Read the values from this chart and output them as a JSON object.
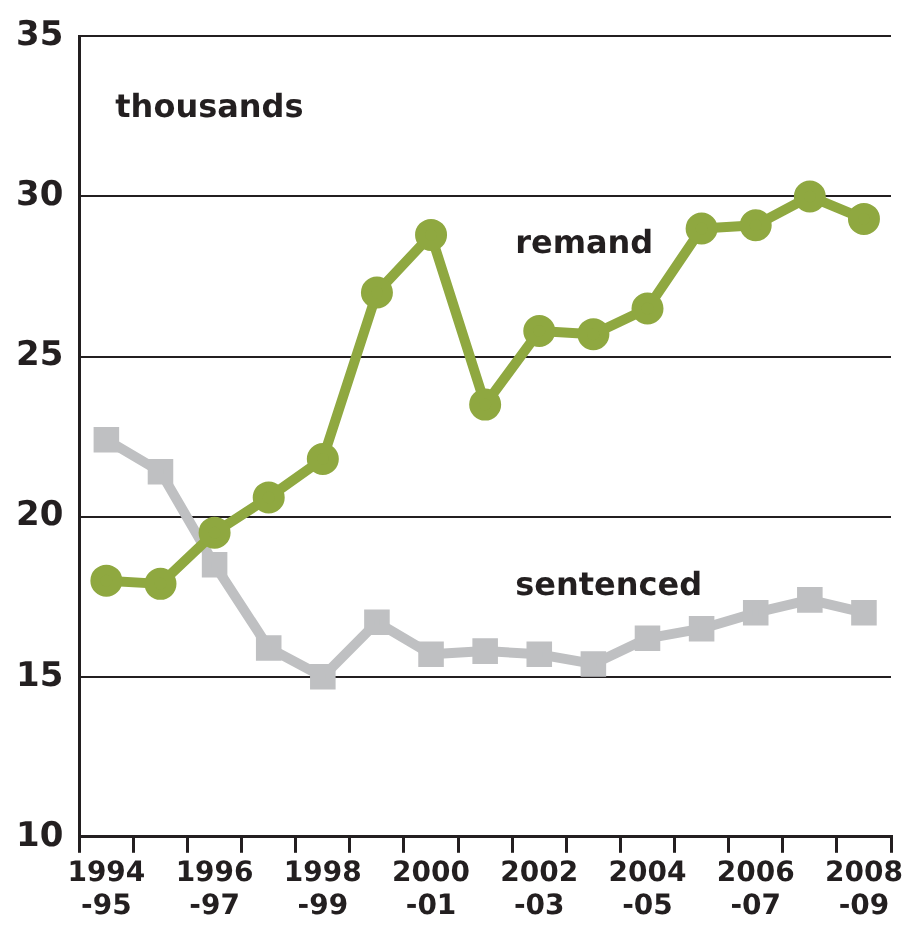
{
  "chart_data": {
    "type": "line",
    "ylabel": "thousands",
    "categories": [
      "1994\n-95",
      null,
      "1996\n-97",
      null,
      "1998\n-99",
      null,
      "2000\n-01",
      null,
      "2002\n-03",
      null,
      "2004\n-05",
      null,
      "2006\n-07",
      null,
      "2008\n-09"
    ],
    "series": [
      {
        "name": "remand",
        "color": "#8fa840",
        "marker": "circle",
        "values": [
          18.0,
          17.9,
          19.5,
          20.6,
          21.8,
          27.0,
          28.8,
          23.5,
          25.8,
          25.7,
          26.5,
          29.0,
          29.1,
          30.0,
          29.3
        ]
      },
      {
        "name": "sentenced",
        "color": "#bfc0c2",
        "marker": "square",
        "values": [
          22.4,
          21.4,
          18.5,
          15.9,
          15.0,
          16.7,
          15.7,
          15.8,
          15.7,
          15.4,
          16.2,
          16.5,
          17.0,
          17.4,
          17.0
        ]
      }
    ],
    "ylim": [
      10,
      35
    ],
    "yticks": [
      10,
      15,
      20,
      25,
      30,
      35
    ],
    "grid": "y",
    "legend": false
  }
}
